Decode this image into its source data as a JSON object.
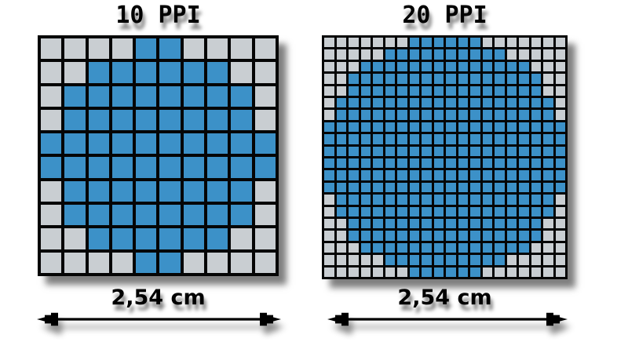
{
  "diagram": {
    "background": "#ffffff",
    "colors": {
      "pixel_on": "#3C91C8",
      "pixel_off": "#C9CED2",
      "grid_line": "#050505",
      "arrow": "#000000",
      "text": "#000000"
    },
    "panels": [
      {
        "title": "10 PPI",
        "grid_size": 10,
        "measure_label": "2,54 cm",
        "rows": [
          "0000110000",
          "0011111100",
          "0111111110",
          "0111111110",
          "1111111111",
          "1111111111",
          "0111111110",
          "0111111110",
          "0011111100",
          "0000110000"
        ]
      },
      {
        "title": "20 PPI",
        "grid_size": 20,
        "measure_label": "2,54 cm",
        "rows": [
          "00000001111110000000",
          "00000111111111100000",
          "00011111111111111000",
          "00111111111111111100",
          "00111111111111111100",
          "01111111111111111110",
          "01111111111111111110",
          "11111111111111111111",
          "11111111111111111111",
          "11111111111111111111",
          "11111111111111111111",
          "11111111111111111111",
          "11111111111111111111",
          "01111111111111111110",
          "01111111111111111110",
          "00111111111111111100",
          "00111111111111111100",
          "00011111111111111000",
          "00000111111111100000",
          "00000001111110000000"
        ]
      }
    ]
  }
}
